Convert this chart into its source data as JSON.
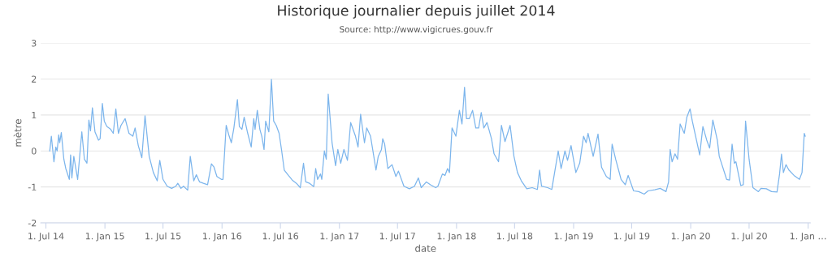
{
  "chart_data": {
    "type": "line",
    "title": "Historique journalier depuis juillet 2014",
    "subtitle": "Source: http://www.vigicrues.gouv.fr",
    "xlabel": "date",
    "ylabel": "mètre",
    "xlim": [
      "2014-06-15",
      "2021-01-08"
    ],
    "xticks": [
      {
        "value": "2014-07-01",
        "label": "1. Jul 14"
      },
      {
        "value": "2015-01-01",
        "label": "1. Jan 15"
      },
      {
        "value": "2015-07-01",
        "label": "1. Jul 15"
      },
      {
        "value": "2016-01-01",
        "label": "1. Jan 16"
      },
      {
        "value": "2016-07-01",
        "label": "1. Jul 16"
      },
      {
        "value": "2017-01-01",
        "label": "1. Jan 17"
      },
      {
        "value": "2017-07-01",
        "label": "1. Jul 17"
      },
      {
        "value": "2018-01-01",
        "label": "1. Jan 18"
      },
      {
        "value": "2018-07-01",
        "label": "1. Jul 18"
      },
      {
        "value": "2019-01-01",
        "label": "1. Jan 19"
      },
      {
        "value": "2019-07-01",
        "label": "1. Jul 19"
      },
      {
        "value": "2020-01-01",
        "label": "1. Jan 20"
      },
      {
        "value": "2020-07-01",
        "label": "1. Jul 20"
      },
      {
        "value": "2021-01-01",
        "label": "1. Jan …"
      }
    ],
    "ylim": [
      -2,
      3
    ],
    "yticks": [
      -2,
      -1,
      0,
      1,
      2,
      3
    ],
    "grid": "y",
    "legend": false,
    "marker": "none",
    "line_style": "solid",
    "series": [
      {
        "color": "#7cb5ec",
        "x": [
          "2014-07-13",
          "2014-07-18",
          "2014-07-26",
          "2014-08-01",
          "2014-08-05",
          "2014-08-10",
          "2014-08-13",
          "2014-08-18",
          "2014-08-26",
          "2014-09-01",
          "2014-09-12",
          "2014-09-16",
          "2014-09-20",
          "2014-09-26",
          "2014-10-08",
          "2014-10-21",
          "2014-10-29",
          "2014-11-06",
          "2014-11-12",
          "2014-11-17",
          "2014-11-23",
          "2014-12-01",
          "2014-12-12",
          "2014-12-17",
          "2014-12-24",
          "2014-12-30",
          "2015-01-07",
          "2015-01-19",
          "2015-01-27",
          "2015-02-04",
          "2015-02-12",
          "2015-02-20",
          "2015-03-05",
          "2015-03-17",
          "2015-03-29",
          "2015-04-05",
          "2015-04-15",
          "2015-04-26",
          "2015-05-06",
          "2015-05-19",
          "2015-06-01",
          "2015-06-13",
          "2015-06-21",
          "2015-07-01",
          "2015-07-14",
          "2015-07-28",
          "2015-08-10",
          "2015-08-16",
          "2015-08-26",
          "2015-09-03",
          "2015-09-16",
          "2015-09-24",
          "2015-10-05",
          "2015-10-13",
          "2015-10-23",
          "2015-11-04",
          "2015-11-17",
          "2015-11-29",
          "2015-12-07",
          "2015-12-16",
          "2015-12-30",
          "2016-01-04",
          "2016-01-14",
          "2016-01-22",
          "2016-01-30",
          "2016-02-07",
          "2016-02-18",
          "2016-02-24",
          "2016-03-03",
          "2016-03-10",
          "2016-03-20",
          "2016-04-01",
          "2016-04-09",
          "2016-04-13",
          "2016-04-20",
          "2016-04-28",
          "2016-05-04",
          "2016-05-11",
          "2016-05-16",
          "2016-05-26",
          "2016-06-03",
          "2016-06-10",
          "2016-06-18",
          "2016-06-27",
          "2016-07-05",
          "2016-07-13",
          "2016-07-26",
          "2016-08-07",
          "2016-08-20",
          "2016-09-01",
          "2016-09-11",
          "2016-09-18",
          "2016-09-30",
          "2016-10-13",
          "2016-10-19",
          "2016-10-25",
          "2016-11-03",
          "2016-11-07",
          "2016-11-15",
          "2016-11-21",
          "2016-11-27",
          "2016-12-09",
          "2016-12-20",
          "2016-12-27",
          "2017-01-05",
          "2017-01-15",
          "2017-01-26",
          "2017-02-05",
          "2017-02-20",
          "2017-02-28",
          "2017-03-08",
          "2017-03-20",
          "2017-03-27",
          "2017-04-08",
          "2017-04-25",
          "2017-05-02",
          "2017-05-12",
          "2017-05-16",
          "2017-05-22",
          "2017-06-01",
          "2017-06-14",
          "2017-06-26",
          "2017-07-04",
          "2017-07-21",
          "2017-08-07",
          "2017-08-23",
          "2017-09-04",
          "2017-09-13",
          "2017-09-29",
          "2017-10-12",
          "2017-10-28",
          "2017-11-04",
          "2017-11-18",
          "2017-11-26",
          "2017-12-04",
          "2017-12-10",
          "2017-12-18",
          "2017-12-30",
          "2018-01-10",
          "2018-01-18",
          "2018-01-26",
          "2018-02-01",
          "2018-02-10",
          "2018-02-20",
          "2018-03-02",
          "2018-03-11",
          "2018-03-19",
          "2018-03-27",
          "2018-04-06",
          "2018-04-20",
          "2018-04-28",
          "2018-05-12",
          "2018-05-21",
          "2018-06-01",
          "2018-06-17",
          "2018-06-29",
          "2018-07-10",
          "2018-07-22",
          "2018-08-08",
          "2018-08-25",
          "2018-09-10",
          "2018-09-17",
          "2018-09-23",
          "2018-10-12",
          "2018-10-25",
          "2018-11-02",
          "2018-11-14",
          "2018-11-23",
          "2018-12-05",
          "2018-12-13",
          "2018-12-24",
          "2019-01-08",
          "2019-01-20",
          "2019-02-01",
          "2019-02-09",
          "2019-02-15",
          "2019-03-03",
          "2019-03-18",
          "2019-03-29",
          "2019-04-13",
          "2019-04-25",
          "2019-05-01",
          "2019-05-12",
          "2019-05-29",
          "2019-06-11",
          "2019-06-20",
          "2019-07-07",
          "2019-07-23",
          "2019-08-09",
          "2019-08-21",
          "2019-09-11",
          "2019-09-28",
          "2019-10-16",
          "2019-10-24",
          "2019-10-29",
          "2019-11-04",
          "2019-11-13",
          "2019-11-21",
          "2019-11-29",
          "2019-12-12",
          "2019-12-20",
          "2019-12-30",
          "2020-01-06",
          "2020-01-29",
          "2020-02-08",
          "2020-02-20",
          "2020-02-29",
          "2020-03-10",
          "2020-03-24",
          "2020-03-30",
          "2020-04-22",
          "2020-05-01",
          "2020-05-09",
          "2020-05-16",
          "2020-05-21",
          "2020-06-05",
          "2020-06-13",
          "2020-06-20",
          "2020-07-01",
          "2020-07-13",
          "2020-07-30",
          "2020-08-07",
          "2020-08-24",
          "2020-09-09",
          "2020-09-26",
          "2020-10-04",
          "2020-10-10",
          "2020-10-16",
          "2020-10-24",
          "2020-11-02",
          "2020-11-18",
          "2020-12-05",
          "2020-12-13",
          "2020-12-20",
          "2020-12-23"
        ],
        "values": [
          0.0,
          0.41,
          -0.3,
          0.11,
          0.0,
          0.45,
          0.23,
          0.51,
          -0.23,
          -0.49,
          -0.79,
          -0.11,
          -0.75,
          -0.15,
          -0.79,
          0.53,
          -0.23,
          -0.34,
          0.86,
          0.56,
          1.2,
          0.53,
          0.3,
          0.34,
          1.32,
          0.83,
          0.68,
          0.6,
          0.49,
          1.17,
          0.49,
          0.71,
          0.9,
          0.49,
          0.41,
          0.64,
          0.15,
          -0.19,
          0.98,
          -0.15,
          -0.6,
          -0.83,
          -0.26,
          -0.79,
          -0.98,
          -1.04,
          -0.98,
          -0.9,
          -1.04,
          -0.98,
          -1.09,
          -0.15,
          -0.83,
          -0.66,
          -0.86,
          -0.9,
          -0.94,
          -0.36,
          -0.45,
          -0.71,
          -0.79,
          -0.79,
          0.71,
          0.45,
          0.23,
          0.64,
          1.43,
          0.68,
          0.6,
          0.94,
          0.53,
          0.11,
          0.9,
          0.6,
          1.13,
          0.6,
          0.41,
          0.04,
          0.83,
          0.53,
          1.99,
          0.83,
          0.71,
          0.49,
          0.0,
          -0.53,
          -0.68,
          -0.81,
          -0.9,
          -1.02,
          -0.34,
          -0.86,
          -0.9,
          -0.99,
          -0.49,
          -0.79,
          -0.64,
          -0.79,
          0.0,
          -0.23,
          1.58,
          0.23,
          -0.41,
          0.04,
          -0.34,
          0.04,
          -0.26,
          0.79,
          0.41,
          0.11,
          1.02,
          0.23,
          0.64,
          0.41,
          -0.53,
          -0.15,
          0.04,
          0.34,
          0.19,
          -0.49,
          -0.38,
          -0.71,
          -0.56,
          -0.98,
          -1.05,
          -0.98,
          -0.75,
          -1.02,
          -0.86,
          -0.94,
          -1.02,
          -0.98,
          -0.64,
          -0.68,
          -0.49,
          -0.6,
          0.64,
          0.41,
          1.13,
          0.75,
          1.77,
          0.9,
          0.9,
          1.13,
          0.64,
          0.64,
          1.07,
          0.64,
          0.79,
          0.34,
          -0.08,
          -0.3,
          0.71,
          0.26,
          0.71,
          -0.15,
          -0.6,
          -0.83,
          -1.05,
          -1.02,
          -1.07,
          -0.53,
          -0.98,
          -1.02,
          -1.07,
          -0.64,
          0.0,
          -0.49,
          0.0,
          -0.26,
          0.15,
          -0.6,
          -0.34,
          0.41,
          0.23,
          0.49,
          -0.15,
          0.47,
          -0.45,
          -0.71,
          -0.79,
          0.19,
          -0.23,
          -0.79,
          -0.94,
          -0.68,
          -1.11,
          -1.13,
          -1.2,
          -1.11,
          -1.08,
          -1.04,
          -1.13,
          -0.86,
          0.04,
          -0.3,
          -0.08,
          -0.23,
          0.75,
          0.49,
          0.94,
          1.17,
          0.83,
          -0.11,
          0.68,
          0.3,
          0.08,
          0.86,
          0.3,
          -0.15,
          -0.79,
          -0.81,
          0.19,
          -0.34,
          -0.3,
          -0.96,
          -0.94,
          0.83,
          -0.23,
          -1.02,
          -1.13,
          -1.04,
          -1.05,
          -1.13,
          -1.14,
          -0.64,
          -0.09,
          -0.6,
          -0.38,
          -0.53,
          -0.68,
          -0.79,
          -0.6,
          0.49,
          0.41
        ]
      }
    ]
  }
}
